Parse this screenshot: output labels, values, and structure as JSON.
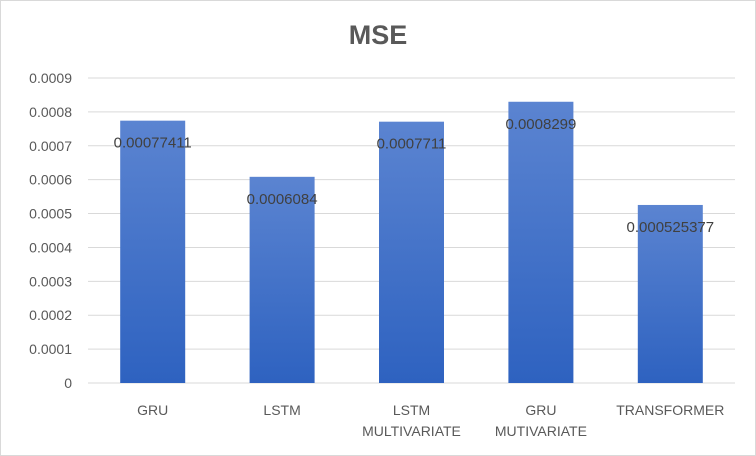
{
  "chart_data": {
    "type": "bar",
    "title": "MSE",
    "xlabel": "",
    "ylabel": "",
    "categories": [
      [
        "GRU"
      ],
      [
        "LSTM"
      ],
      [
        "LSTM",
        "MULTIVARIATE"
      ],
      [
        "GRU",
        "MUTIVARIATE"
      ],
      [
        "TRANSFORMER"
      ]
    ],
    "values": [
      0.00077411,
      0.0006084,
      0.0007711,
      0.0008299,
      0.000525377
    ],
    "data_labels": [
      "0.00077411",
      "0.0006084",
      "0.0007711",
      "0.0008299",
      "0.000525377"
    ],
    "ylim": [
      0,
      0.0009
    ],
    "yticks": [
      "0",
      "0.0001",
      "0.0002",
      "0.0003",
      "0.0004",
      "0.0005",
      "0.0006",
      "0.0007",
      "0.0008",
      "0.0009"
    ],
    "grid": true,
    "legend": "none",
    "colors": {
      "bar_top": "#5b84d1",
      "bar_bottom": "#2e62c0",
      "grid": "#d9d9d9",
      "text": "#595959"
    }
  }
}
